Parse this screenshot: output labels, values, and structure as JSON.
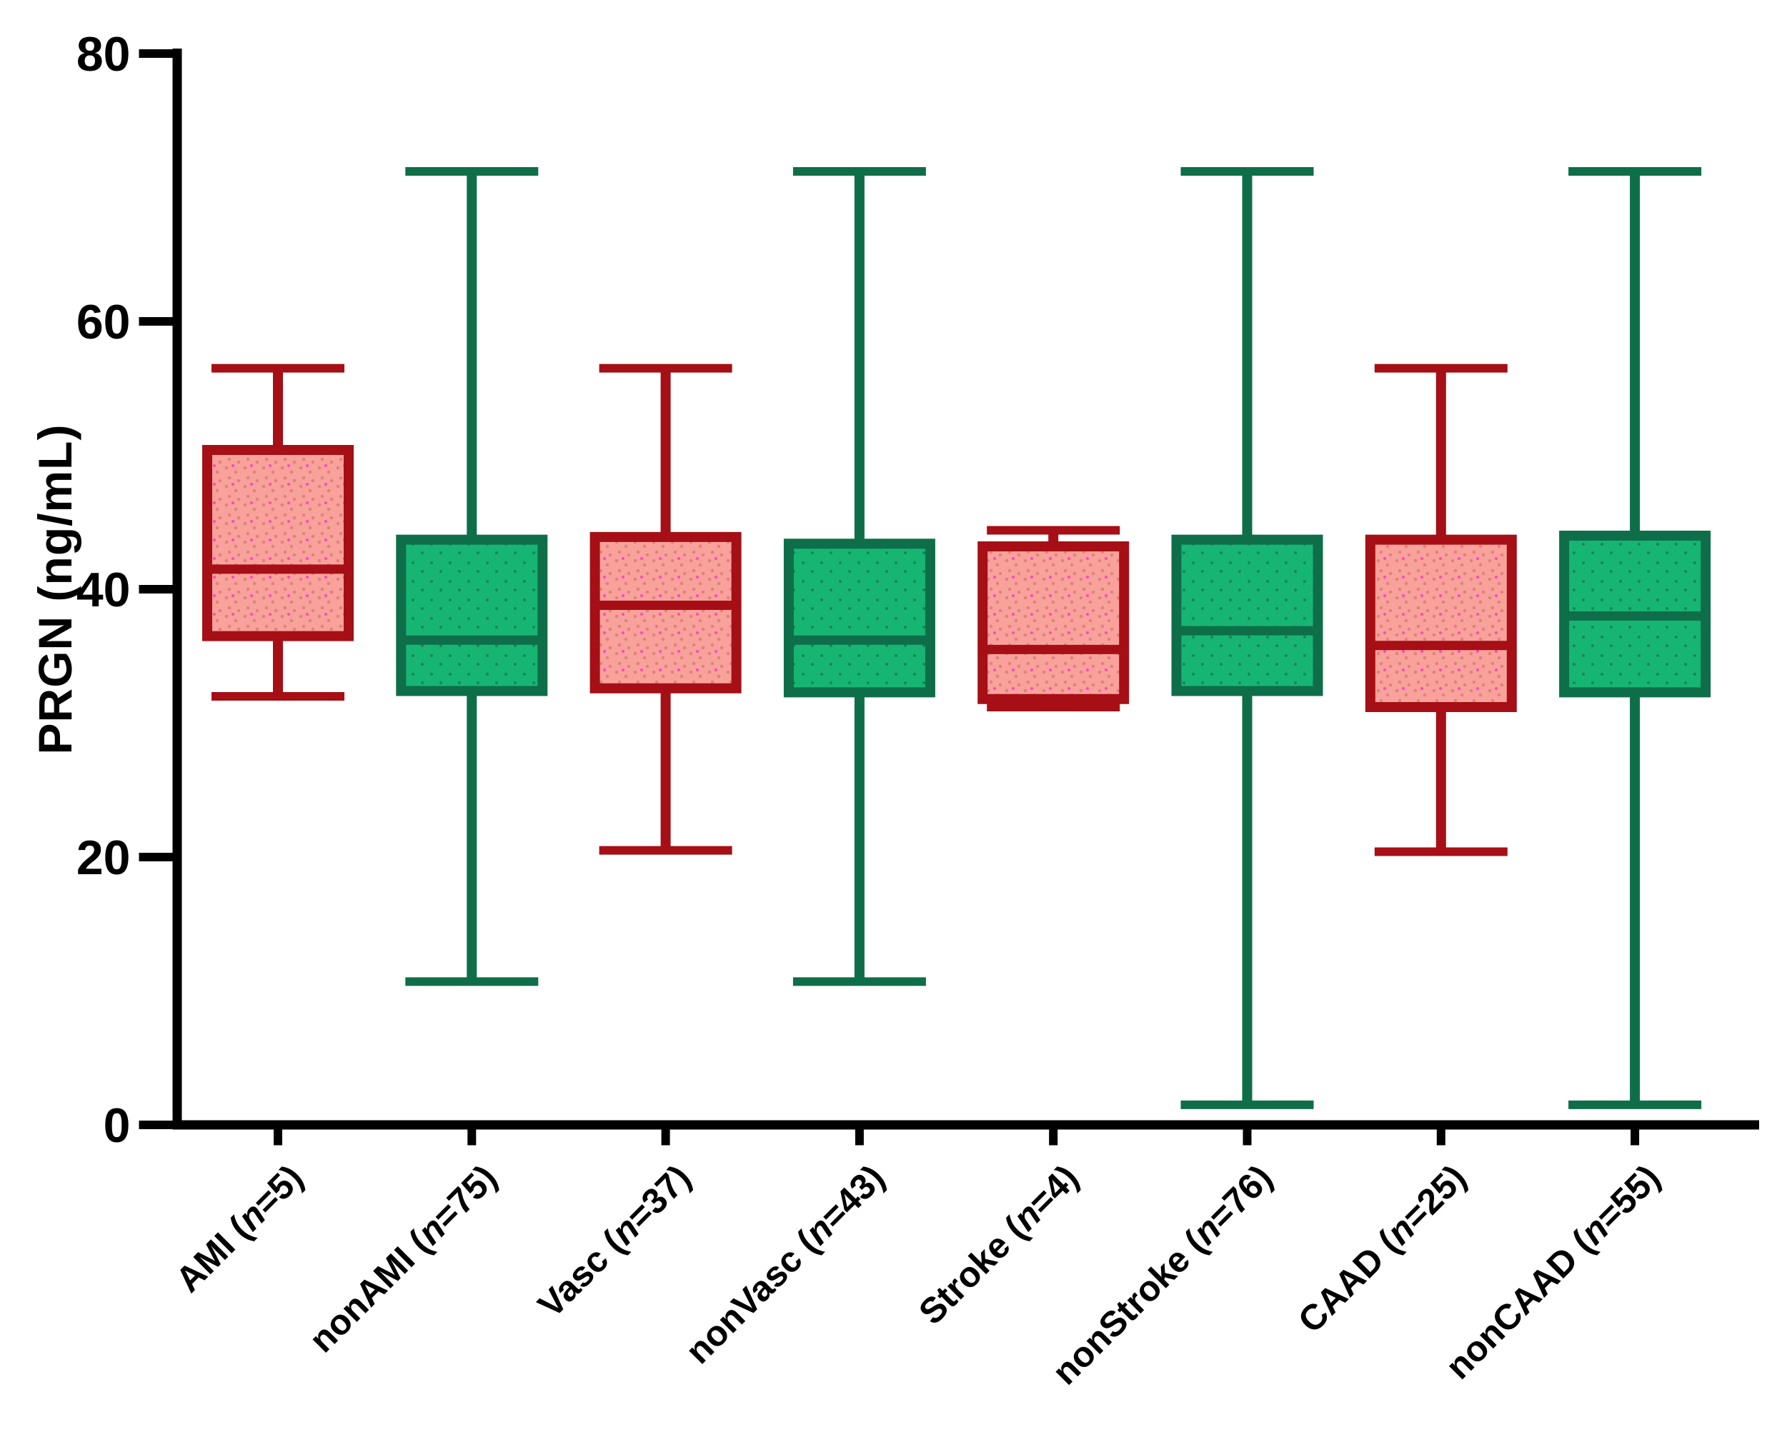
{
  "chart_data": {
    "type": "boxplot",
    "title": "",
    "xlabel": "",
    "ylabel": "PRGN (ng/mL)",
    "ylim": [
      0,
      80
    ],
    "yticks": [
      0,
      20,
      40,
      60,
      80
    ],
    "grid": false,
    "legend": "none",
    "categories": [
      "AMI (n=5)",
      "nonAMI (n=75)",
      "Vasc (n=37)",
      "nonVasc (n=43)",
      "Stroke (n=4)",
      "nonStroke (n=76)",
      "CAAD (n=25)",
      "nonCAAD (n=55)"
    ],
    "series": [
      {
        "name": "AMI",
        "n": 5,
        "group": "case",
        "min": 32.0,
        "q1": 36.5,
        "median": 41.5,
        "q3": 50.4,
        "max": 56.5
      },
      {
        "name": "nonAMI",
        "n": 75,
        "group": "control",
        "min": 10.7,
        "q1": 32.4,
        "median": 36.2,
        "q3": 43.7,
        "max": 71.2
      },
      {
        "name": "Vasc",
        "n": 37,
        "group": "case",
        "min": 20.5,
        "q1": 32.6,
        "median": 38.8,
        "q3": 43.9,
        "max": 56.5
      },
      {
        "name": "nonVasc",
        "n": 43,
        "group": "control",
        "min": 10.7,
        "q1": 32.3,
        "median": 36.2,
        "q3": 43.4,
        "max": 71.2
      },
      {
        "name": "Stroke",
        "n": 4,
        "group": "case",
        "min": 31.2,
        "q1": 31.8,
        "median": 35.5,
        "q3": 43.2,
        "max": 44.4
      },
      {
        "name": "nonStroke",
        "n": 76,
        "group": "control",
        "min": 1.5,
        "q1": 32.4,
        "median": 36.9,
        "q3": 43.7,
        "max": 71.2
      },
      {
        "name": "CAAD",
        "n": 25,
        "group": "case",
        "min": 20.4,
        "q1": 31.2,
        "median": 35.8,
        "q3": 43.7,
        "max": 56.5
      },
      {
        "name": "nonCAAD",
        "n": 55,
        "group": "control",
        "min": 1.5,
        "q1": 32.3,
        "median": 38.0,
        "q3": 44.0,
        "max": 71.2
      }
    ],
    "styles": {
      "case": {
        "stroke": "#A50F15",
        "fill": "#F9A29C",
        "dot": "#E2817C",
        "accent_dot": "#FF3FC3"
      },
      "control": {
        "stroke": "#0E6E49",
        "fill": "#17B573",
        "dot": "#0F7A4F",
        "accent_dot": "#0C8A58"
      },
      "axis_color": "#000000"
    }
  }
}
